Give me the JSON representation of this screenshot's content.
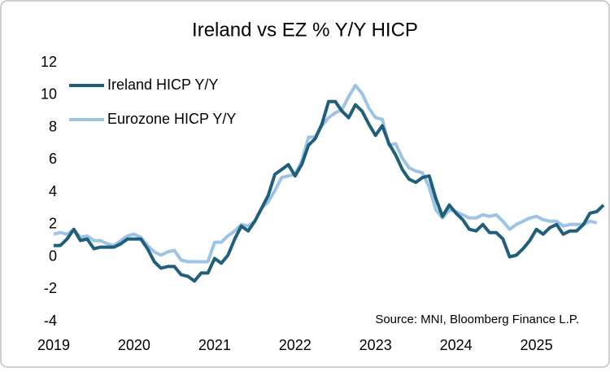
{
  "chart_data": {
    "type": "line",
    "title": "Ireland vs EZ % Y/Y HICP",
    "categories": [
      "2019",
      null,
      null,
      null,
      null,
      null,
      null,
      null,
      null,
      null,
      null,
      null,
      "2020",
      null,
      null,
      null,
      null,
      null,
      null,
      null,
      null,
      null,
      null,
      null,
      "2021",
      null,
      null,
      null,
      null,
      null,
      null,
      null,
      null,
      null,
      null,
      null,
      "2022",
      null,
      null,
      null,
      null,
      null,
      null,
      null,
      null,
      null,
      null,
      null,
      "2023",
      null,
      null,
      null,
      null,
      null,
      null,
      null,
      null,
      null,
      null,
      null,
      "2024",
      null,
      null,
      null,
      null,
      null,
      null,
      null,
      null,
      null,
      null,
      null,
      "2025",
      null,
      null,
      null,
      null,
      null,
      null,
      null,
      null,
      null,
      null
    ],
    "series": [
      {
        "name": "Ireland HICP Y/Y",
        "color": "#1f5f7a",
        "values": [
          0.7,
          0.7,
          1.1,
          1.7,
          1.0,
          1.1,
          0.5,
          0.6,
          0.6,
          0.6,
          0.8,
          1.1,
          1.1,
          1.1,
          0.5,
          -0.3,
          -0.7,
          -0.6,
          -0.6,
          -1.1,
          -1.2,
          -1.5,
          -1.0,
          -1.0,
          -0.1,
          -0.4,
          0.1,
          1.1,
          1.9,
          1.6,
          2.2,
          3.0,
          3.8,
          5.1,
          5.4,
          5.7,
          5.0,
          5.7,
          6.9,
          7.3,
          8.2,
          9.6,
          9.6,
          9.0,
          8.6,
          9.4,
          9.0,
          8.2,
          7.5,
          8.1,
          7.0,
          6.3,
          5.4,
          4.8,
          4.6,
          4.9,
          5.0,
          3.6,
          2.5,
          3.2,
          2.7,
          2.3,
          1.7,
          1.6,
          2.0,
          1.5,
          1.5,
          1.1,
          0.0,
          0.1,
          0.5,
          1.0,
          1.7,
          1.4,
          1.8,
          2.0,
          1.4,
          1.6,
          1.6,
          2.0,
          2.7,
          2.8,
          3.2
        ]
      },
      {
        "name": "Eurozone HICP Y/Y",
        "color": "#9dc3e6",
        "values": [
          1.4,
          1.5,
          1.4,
          1.7,
          1.2,
          1.3,
          1.0,
          1.0,
          0.8,
          0.7,
          1.0,
          1.3,
          1.4,
          1.2,
          0.7,
          0.3,
          0.1,
          0.3,
          0.4,
          -0.2,
          -0.3,
          -0.3,
          -0.3,
          -0.3,
          0.9,
          0.9,
          1.3,
          1.6,
          2.0,
          1.9,
          2.2,
          3.0,
          3.4,
          4.1,
          4.9,
          5.0,
          5.1,
          5.9,
          7.4,
          7.4,
          8.1,
          8.6,
          8.9,
          9.1,
          9.9,
          10.6,
          10.1,
          9.2,
          8.6,
          8.5,
          6.9,
          7.0,
          6.1,
          5.5,
          5.3,
          5.2,
          4.3,
          2.9,
          2.4,
          2.9,
          2.8,
          2.6,
          2.4,
          2.4,
          2.6,
          2.5,
          2.6,
          2.2,
          1.7,
          2.0,
          2.2,
          2.4,
          2.5,
          2.3,
          2.2,
          2.2,
          1.9,
          2.0,
          2.0,
          2.0,
          2.2,
          2.1,
          null
        ]
      }
    ],
    "ylim": [
      -4,
      12
    ],
    "yticks": [
      -4,
      -2,
      0,
      2,
      4,
      6,
      8,
      10,
      12
    ],
    "legend": "upper left",
    "annotation": "Source: MNI, Bloomberg Finance L.P."
  }
}
